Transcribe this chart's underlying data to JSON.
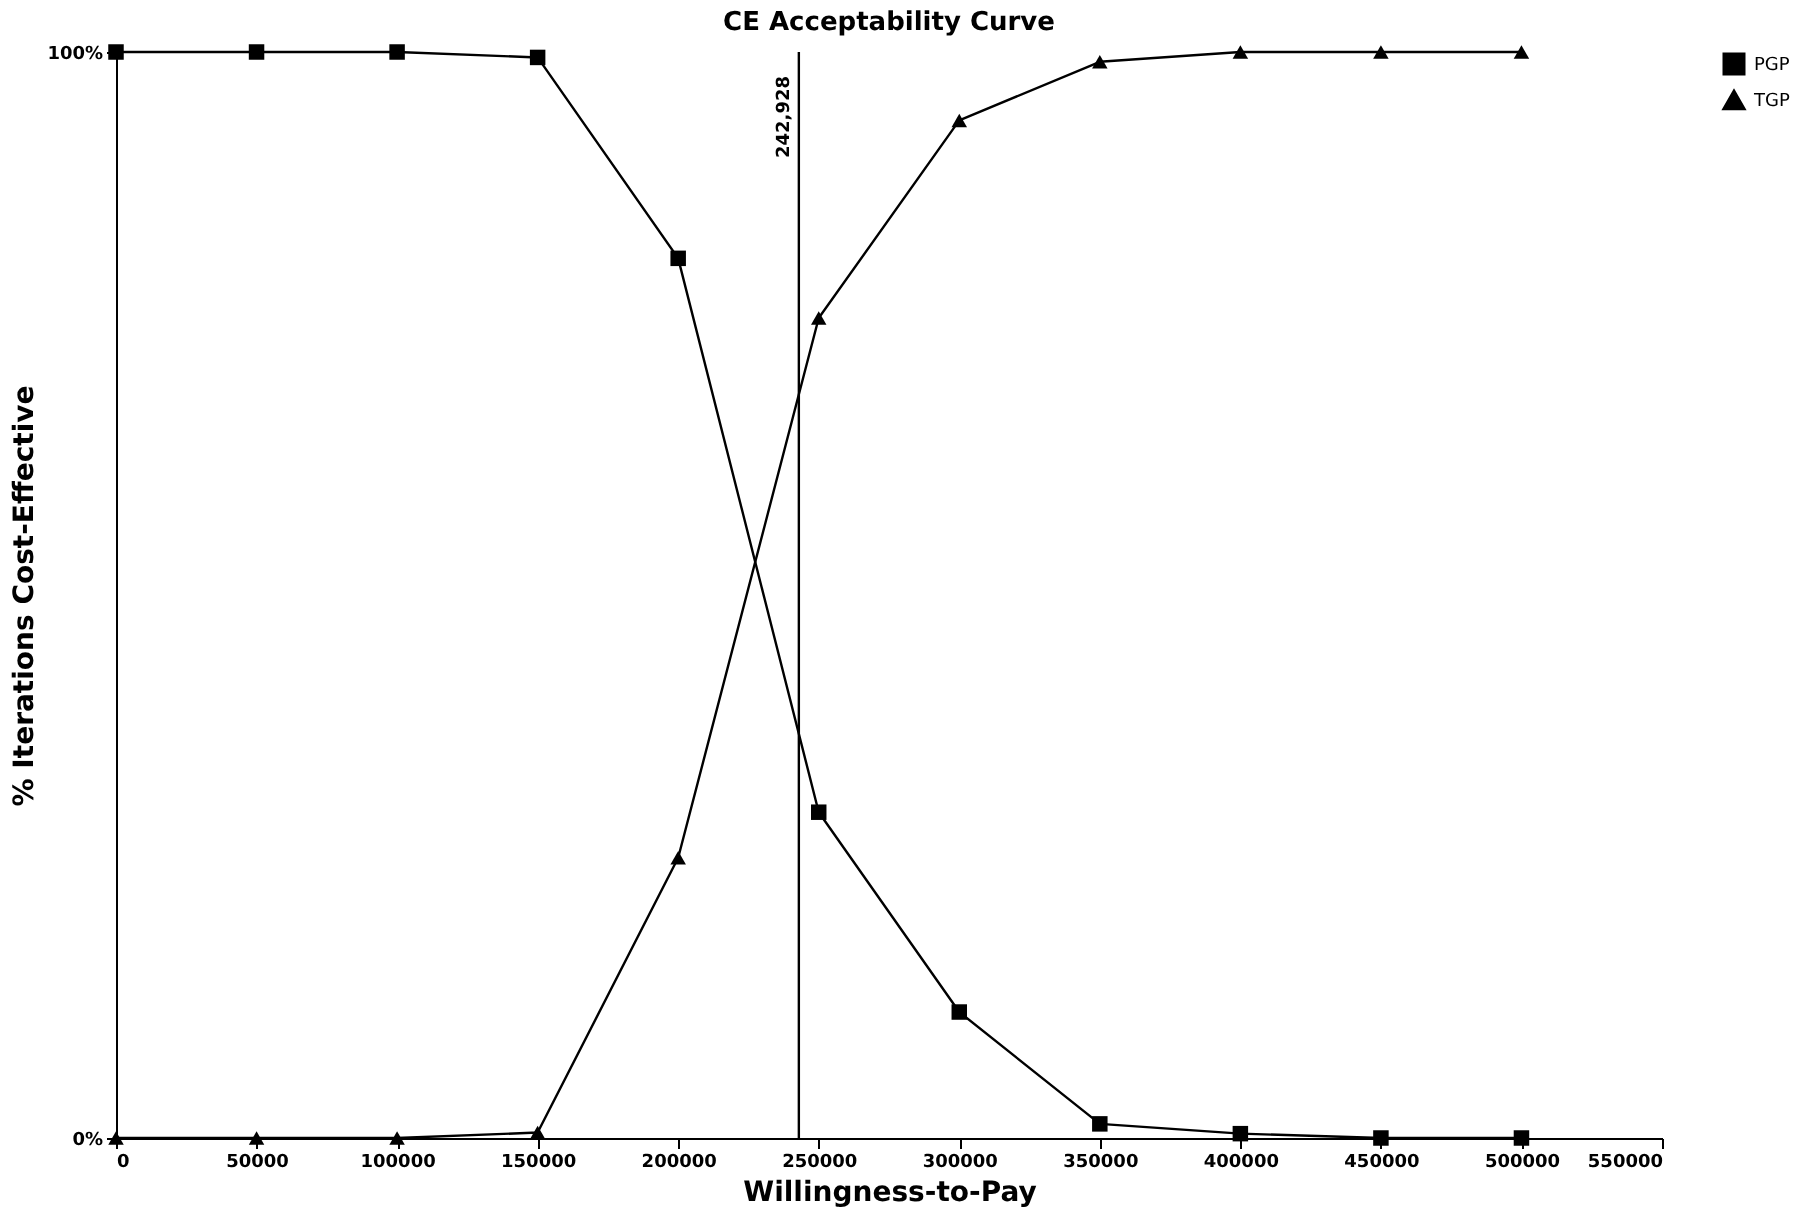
{
  "chart_data": {
    "type": "line",
    "title": "CE Acceptability Curve",
    "xlabel": "Willingness-to-Pay",
    "ylabel": "% Iterations Cost-Effective",
    "x": [
      0,
      50000,
      100000,
      150000,
      200000,
      250000,
      300000,
      350000,
      400000,
      450000,
      500000
    ],
    "series": [
      {
        "name": "PGP",
        "color": "#000000",
        "marker": "square",
        "values": [
          100,
          100,
          100,
          99.5,
          81,
          30,
          11.6,
          1.3,
          0.4,
          0,
          0
        ]
      },
      {
        "name": "TGP",
        "color": "#000000",
        "marker": "triangle",
        "values": [
          0,
          0,
          0,
          0.5,
          25.8,
          75.5,
          93.7,
          99.1,
          100,
          100,
          100
        ]
      }
    ],
    "xlim": [
      0,
      550000
    ],
    "xticks": [
      0,
      50000,
      100000,
      150000,
      200000,
      250000,
      300000,
      350000,
      400000,
      450000,
      500000,
      550000
    ],
    "ylim": [
      0,
      100
    ],
    "yticks": [
      {
        "value": 0,
        "label": "0%"
      },
      {
        "value": 100,
        "label": "100%"
      }
    ],
    "ref_lines": [
      {
        "axis": "x",
        "value": 242928,
        "label": "242,928"
      }
    ],
    "grid": false,
    "legend": "right",
    "line_style": "solid"
  }
}
